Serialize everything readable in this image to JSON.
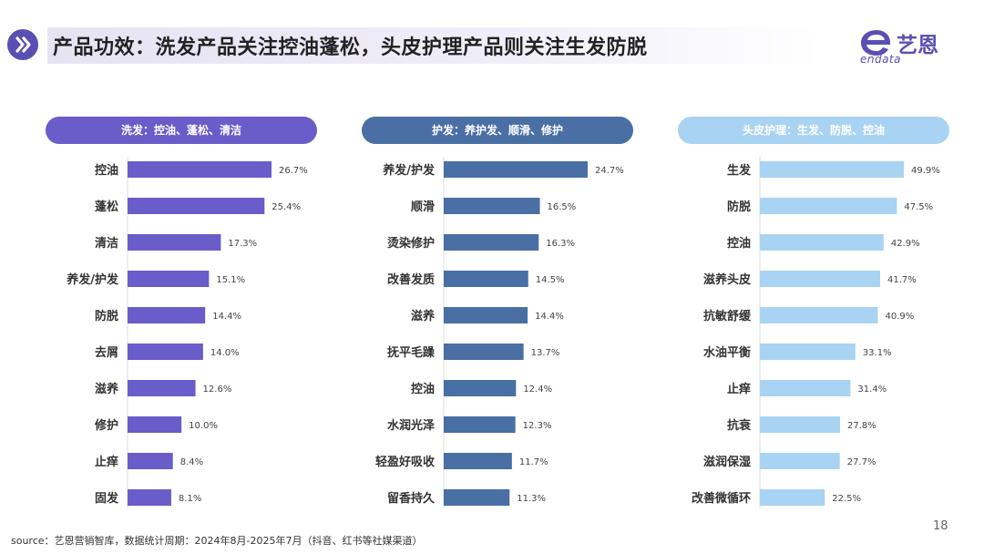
{
  "header": {
    "title": "产品功效：洗发产品关注控油蓬松，头皮护理产品则关注生发防脱",
    "logo_text": "艺恩",
    "logo_sub": "endata"
  },
  "colors": {
    "panel1": "#6a5cc9",
    "panel2": "#4a6fa5",
    "panel3": "#a9d3f2"
  },
  "chart_data": [
    {
      "type": "bar",
      "title": "洗发：控油、蓬松、清洁",
      "categories": [
        "控油",
        "蓬松",
        "清洁",
        "养发/护发",
        "防脱",
        "去屑",
        "滋养",
        "修护",
        "止痒",
        "固发"
      ],
      "values": [
        26.7,
        25.4,
        17.3,
        15.1,
        14.4,
        14.0,
        12.6,
        10.0,
        8.4,
        8.1
      ],
      "labels": [
        "26.7%",
        "25.4%",
        "17.3%",
        "15.1%",
        "14.4%",
        "14.0%",
        "12.6%",
        "10.0%",
        "8.4%",
        "8.1%"
      ],
      "orientation": "horizontal"
    },
    {
      "type": "bar",
      "title": "护发：养护发、顺滑、修护",
      "categories": [
        "养发/护发",
        "顺滑",
        "烫染修护",
        "改善发质",
        "滋养",
        "抚平毛躁",
        "控油",
        "水润光泽",
        "轻盈好吸收",
        "留香持久"
      ],
      "values": [
        24.7,
        16.5,
        16.3,
        14.5,
        14.4,
        13.7,
        12.4,
        12.3,
        11.7,
        11.3
      ],
      "labels": [
        "24.7%",
        "16.5%",
        "16.3%",
        "14.5%",
        "14.4%",
        "13.7%",
        "12.4%",
        "12.3%",
        "11.7%",
        "11.3%"
      ],
      "orientation": "horizontal"
    },
    {
      "type": "bar",
      "title": "头皮护理：生发、防脱、控油",
      "categories": [
        "生发",
        "防脱",
        "控油",
        "滋养头皮",
        "抗敏舒缓",
        "水油平衡",
        "止痒",
        "抗衰",
        "滋润保湿",
        "改善微循环"
      ],
      "values": [
        49.9,
        47.5,
        42.9,
        41.7,
        40.9,
        33.1,
        31.4,
        27.8,
        27.7,
        22.5
      ],
      "labels": [
        "49.9%",
        "47.5%",
        "42.9%",
        "41.7%",
        "40.9%",
        "33.1%",
        "31.4%",
        "27.8%",
        "27.7%",
        "22.5%"
      ],
      "orientation": "horizontal"
    }
  ],
  "footer": {
    "source": "source：艺恩营销智库，数据统计周期：2024年8月-2025年7月（抖音、红书等社媒渠道）",
    "page_number": "18"
  }
}
